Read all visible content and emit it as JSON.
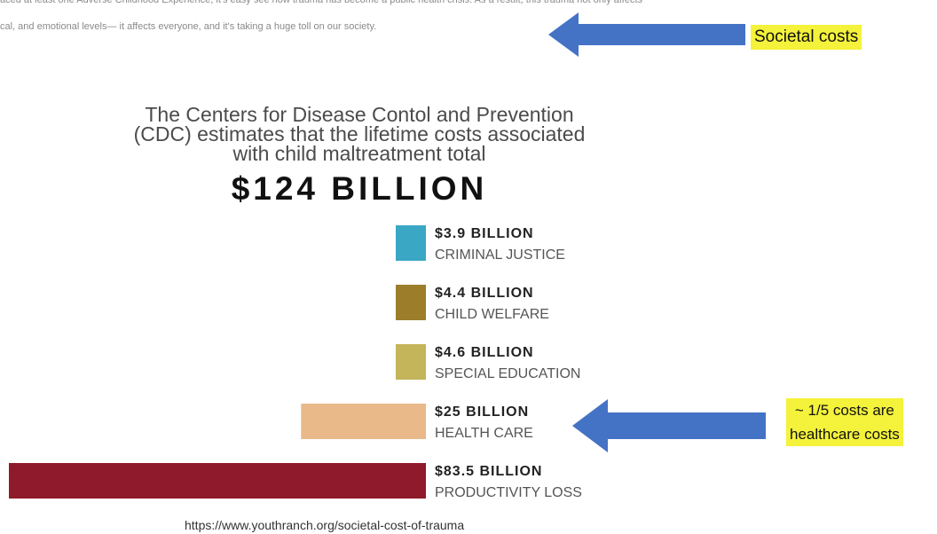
{
  "header_text": {
    "line1": "aced at least one Adverse Childhood Experience, it's easy see how trauma has become a public health crisis. As a result, this trauma not only affects",
    "line2": "cal, and emotional levels— it affects everyone, and it's taking a huge toll on our society."
  },
  "annotations": {
    "societal_costs": "Societal costs",
    "healthcare_line1": "~ 1/5 costs are",
    "healthcare_line2": "healthcare costs",
    "arrow_color": "#4472c4",
    "highlight_color": "#f4f23a"
  },
  "headline": {
    "line1": "The Centers for Disease Contol and Prevention",
    "line2": "(CDC) estimates that the lifetime costs associated",
    "line3": "with child maltreatment total",
    "total": "$124 BILLION"
  },
  "chart_data": {
    "type": "bar",
    "orientation": "horizontal",
    "unit": "billion USD",
    "categories": [
      "CRIMINAL JUSTICE",
      "CHILD WELFARE",
      "SPECIAL EDUCATION",
      "HEALTH CARE",
      "PRODUCTIVITY LOSS"
    ],
    "values": [
      3.9,
      4.4,
      4.6,
      25,
      83.5
    ],
    "value_labels": [
      "$3.9 BILLION",
      "$4.4 BILLION",
      "$4.6 BILLION",
      "$25 BILLION",
      "$83.5 BILLION"
    ],
    "colors": [
      "#3aa7c4",
      "#9c7d2a",
      "#c4b45a",
      "#e9b98a",
      "#8e1a2b"
    ]
  },
  "source": "https://www.youthranch.org/societal-cost-of-trauma"
}
